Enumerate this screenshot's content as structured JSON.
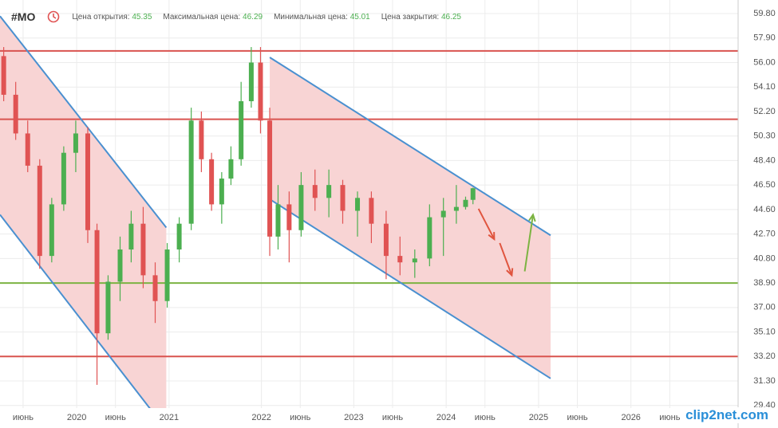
{
  "header": {
    "symbol": "#MO",
    "stats": [
      {
        "label": "Цена открытия:",
        "value": 45.35
      },
      {
        "label": "Максимальная цена:",
        "value": 46.29
      },
      {
        "label": "Минимальная цена:",
        "value": 45.01
      },
      {
        "label": "Цена закрытия:",
        "value": 46.25
      }
    ]
  },
  "watermark": "clip2net.com",
  "chart_data": {
    "type": "candlestick",
    "x": [
      2019.21,
      2019.34,
      2019.47,
      2019.6,
      2019.73,
      2019.86,
      2019.99,
      2020.12,
      2020.22,
      2020.34,
      2020.47,
      2020.59,
      2020.72,
      2020.85,
      2020.98,
      2021.11,
      2021.24,
      2021.35,
      2021.46,
      2021.57,
      2021.67,
      2021.78,
      2021.89,
      2021.99,
      2022.09,
      2022.18,
      2022.3,
      2022.43,
      2022.58,
      2022.73,
      2022.88,
      2023.04,
      2023.19,
      2023.35,
      2023.5,
      2023.66,
      2023.82,
      2023.97,
      2024.11,
      2024.21,
      2024.29
    ],
    "open": [
      56.5,
      53.5,
      50.5,
      48,
      41,
      45,
      49,
      50.5,
      43,
      35,
      39,
      41.5,
      43.5,
      39.5,
      37.5,
      41.5,
      43.5,
      51.5,
      48.5,
      45,
      47,
      48.5,
      53,
      56,
      51.5,
      42.5,
      45,
      43,
      46.5,
      45.5,
      46.5,
      44.5,
      45.5,
      43.5,
      41,
      40.5,
      40.8,
      44,
      44.5,
      44.8,
      45.35
    ],
    "high": [
      57.2,
      54.5,
      51.5,
      48.5,
      45.5,
      49.5,
      51.5,
      51,
      43.5,
      39.5,
      42.5,
      44.5,
      44.8,
      40.5,
      42,
      44,
      52.5,
      52.2,
      49,
      47.5,
      49.5,
      54.5,
      57.2,
      57.2,
      52.5,
      46.5,
      46,
      47.5,
      47.7,
      47.7,
      46.9,
      46,
      46,
      44.5,
      42.5,
      41.5,
      45,
      45.5,
      46.5,
      45.6,
      46.29
    ],
    "low": [
      53,
      50,
      47.5,
      40,
      40.5,
      44.5,
      47.5,
      42,
      31,
      34.5,
      37.5,
      40.5,
      38.5,
      35.8,
      37,
      40.5,
      43,
      47.5,
      44.5,
      43.5,
      46.5,
      48,
      52.5,
      50.5,
      41,
      41.5,
      40.5,
      42.5,
      44.5,
      44,
      43.5,
      42.5,
      42,
      39.2,
      39.5,
      39.3,
      40.2,
      41,
      43.5,
      44.6,
      45.01
    ],
    "close": [
      53.5,
      50.5,
      48,
      41,
      45,
      49,
      50.5,
      43,
      35,
      39,
      41.5,
      43.5,
      39.5,
      37.5,
      41.5,
      43.5,
      51.5,
      48.5,
      45,
      47,
      48.5,
      53,
      56,
      51.5,
      42.5,
      45,
      43,
      46.5,
      45.5,
      46.5,
      44.5,
      45.5,
      43.5,
      41,
      40.5,
      40.8,
      44,
      44.5,
      44.8,
      45.35,
      46.25
    ],
    "up_color": "#4caf50",
    "down_color": "#e05353",
    "xlim": [
      2019.17,
      2027.16
    ],
    "ylim": [
      29.2,
      60.85
    ],
    "xticks": [
      {
        "value": 2019.42,
        "label": "июнь"
      },
      2020,
      {
        "value": 2020.42,
        "label": "июнь"
      },
      2021,
      2022,
      {
        "value": 2022.42,
        "label": "июнь"
      },
      2023,
      {
        "value": 2023.42,
        "label": "июнь"
      },
      2024,
      {
        "value": 2024.42,
        "label": "июнь"
      },
      2025,
      {
        "value": 2025.42,
        "label": "июнь"
      },
      2026,
      {
        "value": 2026.42,
        "label": "июнь"
      }
    ],
    "yticks": [
      {
        "value": 59.8,
        "label": "59.80"
      },
      {
        "value": 57.9,
        "label": "57.90"
      },
      {
        "value": 56,
        "label": "56.00"
      },
      {
        "value": 54.1,
        "label": "54.10"
      },
      {
        "value": 52.2,
        "label": "52.20"
      },
      {
        "value": 50.3,
        "label": "50.30"
      },
      {
        "value": 48.4,
        "label": "48.40"
      },
      {
        "value": 46.5,
        "label": "46.50"
      },
      {
        "value": 44.6,
        "label": "44.60"
      },
      {
        "value": 42.7,
        "label": "42.70"
      },
      {
        "value": 40.8,
        "label": "40.80"
      },
      {
        "value": 38.9,
        "label": "38.90"
      },
      {
        "value": 37,
        "label": "37.00"
      },
      {
        "value": 35.1,
        "label": "35.10"
      },
      {
        "value": 33.2,
        "label": "33.20"
      },
      {
        "value": 31.3,
        "label": "31.30"
      },
      {
        "value": 29.4,
        "label": "29.40"
      }
    ],
    "grid": true,
    "channels": [
      {
        "upper": [
          [
            2019.17,
            59.6
          ],
          [
            2020.97,
            43.2
          ]
        ],
        "lower": [
          [
            2019.17,
            44.2
          ],
          [
            2020.97,
            27.53
          ]
        ],
        "fill": "#f8d4d4",
        "line_color": "#4a90d0"
      },
      {
        "upper": [
          [
            2022.09,
            56.4
          ],
          [
            2025.13,
            42.6
          ]
        ],
        "lower": [
          [
            2022.09,
            45.4
          ],
          [
            2025.13,
            31.5
          ]
        ],
        "fill": "#f8d4d4",
        "line_color": "#4a90d0"
      }
    ],
    "hlines": [
      {
        "value": 56.9,
        "color": "#d9534f"
      },
      {
        "value": 51.6,
        "color": "#d9534f"
      },
      {
        "value": 38.9,
        "color": "#7cb342"
      },
      {
        "value": 33.2,
        "color": "#d9534f"
      }
    ],
    "arrows": [
      {
        "from": [
          2024.35,
          44.66
        ],
        "to": [
          2024.52,
          42.3
        ],
        "color": "#e0553f"
      },
      {
        "from": [
          2024.58,
          42.0
        ],
        "to": [
          2024.71,
          39.5
        ],
        "color": "#e0553f"
      },
      {
        "from": [
          2024.85,
          39.8
        ],
        "to": [
          2024.94,
          44.2
        ],
        "color": "#7cb342"
      }
    ]
  }
}
